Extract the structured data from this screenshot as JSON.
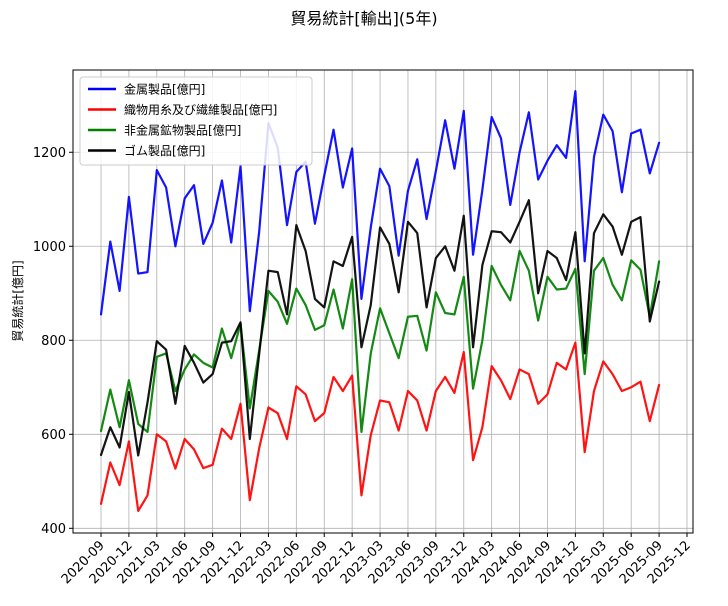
{
  "chart_data": {
    "type": "line",
    "title": "貿易統計[輸出](5年)",
    "xlabel": "",
    "ylabel": "貿易統計[億円]",
    "ylim": [
      390,
      1375
    ],
    "yticks": [
      400,
      600,
      800,
      1000,
      1200
    ],
    "xticks": [
      "2020-09",
      "2020-12",
      "2021-03",
      "2021-06",
      "2021-09",
      "2021-12",
      "2022-03",
      "2022-06",
      "2022-09",
      "2022-12",
      "2023-03",
      "2023-06",
      "2023-09",
      "2023-12",
      "2024-03",
      "2024-06",
      "2024-09",
      "2024-12",
      "2025-03",
      "2025-06",
      "2025-09",
      "2025-12"
    ],
    "x_start": "2020-09",
    "grid": true,
    "legend": "top-left",
    "series": [
      {
        "name": "金属製品[億円]",
        "color": "#0000ff",
        "values": [
          855,
          1010,
          905,
          1105,
          942,
          945,
          1162,
          1125,
          1000,
          1102,
          1130,
          1005,
          1050,
          1140,
          1008,
          1170,
          862,
          1030,
          1262,
          1210,
          1045,
          1158,
          1180,
          1048,
          1150,
          1248,
          1125,
          1208,
          888,
          1040,
          1165,
          1128,
          980,
          1118,
          1185,
          1058,
          1160,
          1268,
          1165,
          1288,
          982,
          1120,
          1275,
          1230,
          1088,
          1200,
          1285,
          1142,
          1182,
          1215,
          1188,
          1330,
          968,
          1190,
          1280,
          1245,
          1115,
          1240,
          1248,
          1155,
          1220
        ]
      },
      {
        "name": "織物用糸及び繊維製品[億円]",
        "color": "#ff0000",
        "values": [
          452,
          540,
          492,
          585,
          437,
          470,
          600,
          585,
          527,
          590,
          568,
          528,
          535,
          612,
          590,
          665,
          460,
          570,
          657,
          645,
          590,
          702,
          685,
          628,
          645,
          722,
          692,
          725,
          470,
          598,
          672,
          668,
          608,
          692,
          672,
          608,
          692,
          722,
          688,
          775,
          545,
          615,
          745,
          715,
          675,
          738,
          728,
          665,
          685,
          752,
          738,
          795,
          562,
          692,
          755,
          728,
          692,
          700,
          712,
          628,
          705
        ]
      },
      {
        "name": "非金属鉱物製品[億円]",
        "color": "#008000",
        "values": [
          607,
          695,
          615,
          715,
          622,
          605,
          765,
          772,
          692,
          738,
          770,
          752,
          742,
          825,
          762,
          835,
          655,
          778,
          905,
          882,
          835,
          910,
          875,
          822,
          832,
          908,
          825,
          930,
          605,
          772,
          868,
          815,
          762,
          850,
          852,
          778,
          902,
          858,
          855,
          935,
          697,
          800,
          958,
          918,
          885,
          990,
          948,
          842,
          935,
          908,
          910,
          952,
          728,
          948,
          975,
          918,
          885,
          970,
          950,
          850,
          968
        ]
      },
      {
        "name": "ゴム製品[億円]",
        "color": "#000000",
        "values": [
          556,
          615,
          572,
          690,
          555,
          668,
          798,
          780,
          665,
          788,
          752,
          710,
          728,
          795,
          798,
          838,
          590,
          770,
          948,
          945,
          855,
          1045,
          990,
          888,
          870,
          968,
          958,
          1020,
          785,
          875,
          1040,
          1005,
          902,
          1052,
          1028,
          870,
          975,
          1000,
          948,
          1065,
          785,
          960,
          1032,
          1030,
          1008,
          1052,
          1098,
          900,
          990,
          975,
          928,
          1030,
          772,
          1028,
          1068,
          1042,
          982,
          1052,
          1062,
          840,
          925
        ]
      }
    ]
  }
}
